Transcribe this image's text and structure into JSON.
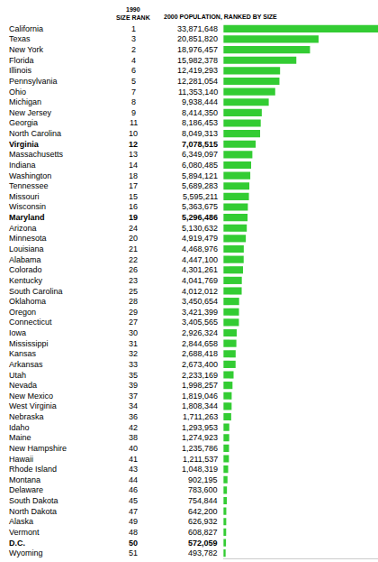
{
  "chart_data": {
    "type": "bar",
    "orientation": "horizontal",
    "rank_header": [
      "1990",
      "SIZE RANK"
    ],
    "title": "2000 POPULATION, RANKED BY SIZE",
    "categories": [
      "California",
      "Texas",
      "New York",
      "Florida",
      "Illinois",
      "Pennsylvania",
      "Ohio",
      "Michigan",
      "New Jersey",
      "Georgia",
      "North Carolina",
      "Virginia",
      "Massachusetts",
      "Indiana",
      "Washington",
      "Tennessee",
      "Missouri",
      "Wisconsin",
      "Maryland",
      "Arizona",
      "Minnesota",
      "Louisiana",
      "Alabama",
      "Colorado",
      "Kentucky",
      "South Carolina",
      "Oklahoma",
      "Oregon",
      "Connecticut",
      "Iowa",
      "Mississippi",
      "Kansas",
      "Arkansas",
      "Utah",
      "Nevada",
      "New Mexico",
      "West Virginia",
      "Nebraska",
      "Idaho",
      "Maine",
      "New Hampshire",
      "Hawaii",
      "Rhode Island",
      "Montana",
      "Delaware",
      "South Dakota",
      "North Dakota",
      "Alaska",
      "Vermont",
      "D.C.",
      "Wyoming"
    ],
    "rank_1990": [
      1,
      3,
      2,
      4,
      6,
      5,
      7,
      8,
      9,
      11,
      10,
      12,
      13,
      14,
      18,
      17,
      15,
      16,
      19,
      24,
      20,
      21,
      22,
      26,
      23,
      25,
      28,
      29,
      27,
      30,
      31,
      32,
      33,
      35,
      39,
      37,
      34,
      36,
      42,
      38,
      40,
      41,
      43,
      44,
      46,
      45,
      47,
      49,
      48,
      50,
      51
    ],
    "values": [
      33871648,
      20851820,
      18976457,
      15982378,
      12419293,
      12281054,
      11353140,
      9938444,
      8414350,
      8186453,
      8049313,
      7078515,
      6349097,
      6080485,
      5894121,
      5689283,
      5595211,
      5363675,
      5296486,
      5130632,
      4919479,
      4468976,
      4447100,
      4301261,
      4041769,
      4012012,
      3450654,
      3421399,
      3405565,
      2926324,
      2844658,
      2688418,
      2673400,
      2233169,
      1998257,
      1819046,
      1808344,
      1711263,
      1293953,
      1274923,
      1235786,
      1211537,
      1048319,
      902195,
      783600,
      754844,
      642200,
      626932,
      608827,
      572059,
      493782
    ],
    "value_labels": [
      "33,871,648",
      "20,851,820",
      "18,976,457",
      "15,982,378",
      "12,419,293",
      "12,281,054",
      "11,353,140",
      "9,938,444",
      "8,414,350",
      "8,186,453",
      "8,049,313",
      "7,078,515",
      "6,349,097",
      "6,080,485",
      "5,894,121",
      "5,689,283",
      "5,595,211",
      "5,363,675",
      "5,296,486",
      "5,130,632",
      "4,919,479",
      "4,468,976",
      "4,447,100",
      "4,301,261",
      "4,041,769",
      "4,012,012",
      "3,450,654",
      "3,421,399",
      "3,405,565",
      "2,926,324",
      "2,844,658",
      "2,688,418",
      "2,673,400",
      "2,233,169",
      "1,998,257",
      "1,819,046",
      "1,808,344",
      "1,711,263",
      "1,293,953",
      "1,274,923",
      "1,235,786",
      "1,211,537",
      "1,048,319",
      "902,195",
      "783,600",
      "754,844",
      "642,200",
      "626,932",
      "608,827",
      "572,059",
      "493,782"
    ],
    "bold_categories": [
      "Virginia",
      "Maryland",
      "D.C."
    ],
    "color": "#33cc33",
    "xlim": [
      0,
      33871648
    ],
    "data_labels": true,
    "tick_labels": "y",
    "grid": false
  }
}
